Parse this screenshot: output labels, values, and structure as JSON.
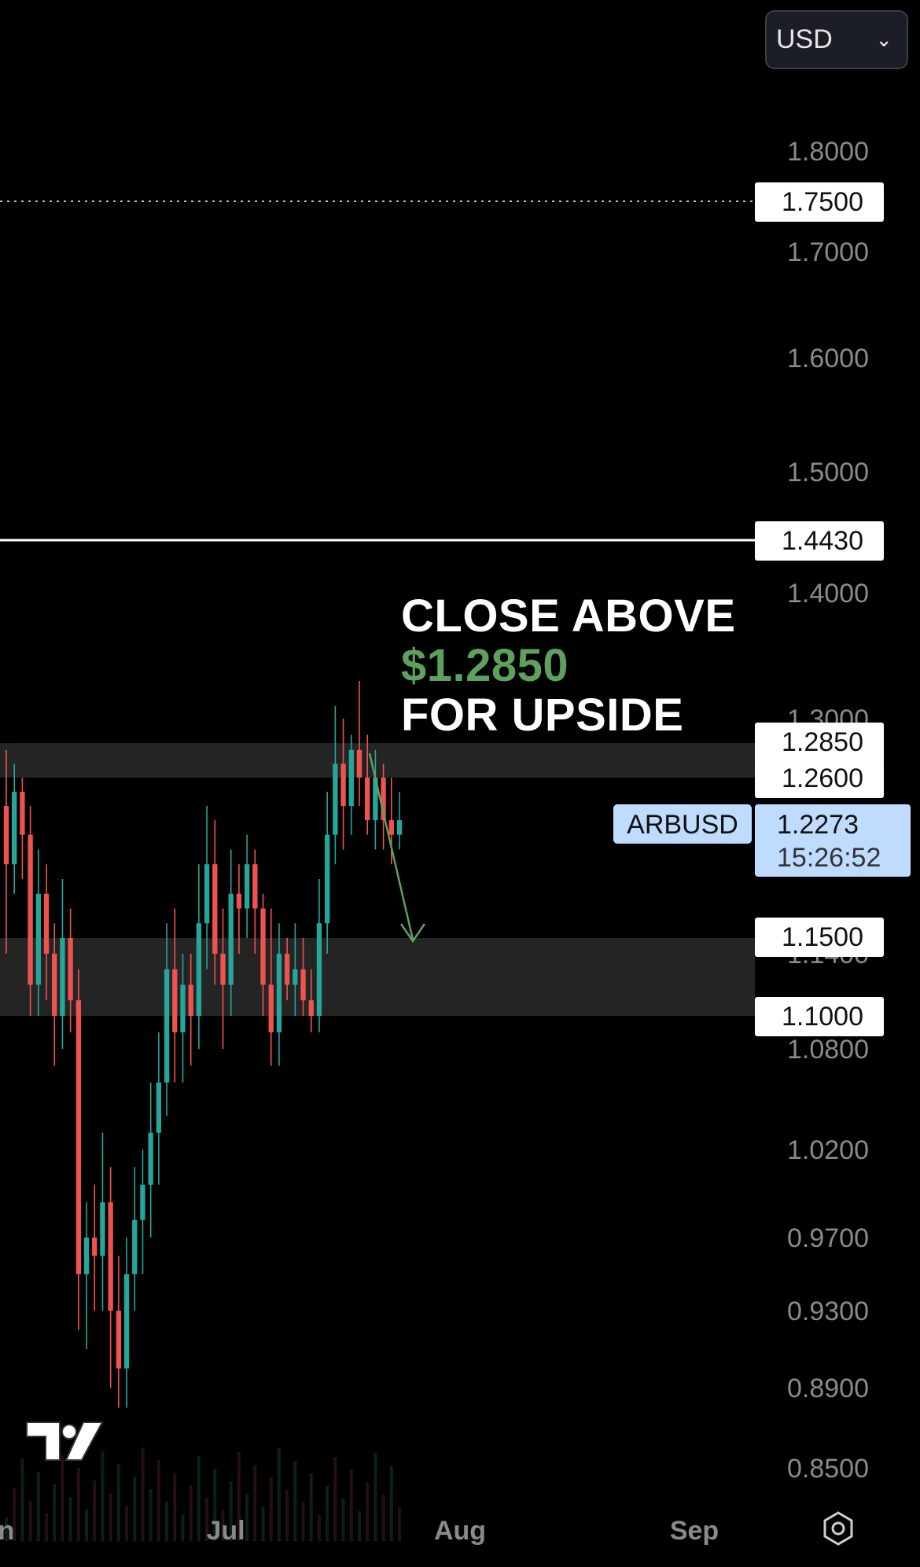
{
  "header": {
    "currency_label": "USD",
    "currency_icon": "chevron-down-icon"
  },
  "chart_data": {
    "type": "candlestick",
    "symbol": "ARBUSD",
    "last_price": "1.2273",
    "countdown": "15:26:52",
    "y_ticks": [
      "1.8000",
      "1.7000",
      "1.6000",
      "1.5000",
      "1.4000",
      "1.3000",
      "1.1400",
      "1.0800",
      "1.0200",
      "0.9700",
      "0.9300",
      "0.8900",
      "0.8500"
    ],
    "x_ticks": [
      "Jun",
      "Jul",
      "Aug",
      "Sep"
    ],
    "levels": [
      {
        "label": "1.7500",
        "style": "dotted"
      },
      {
        "label": "1.4430",
        "style": "solid"
      },
      {
        "label": "1.2850",
        "style": "zone-top"
      },
      {
        "label": "1.2600",
        "style": "zone-bottom"
      },
      {
        "label": "1.1500",
        "style": "zone-top"
      },
      {
        "label": "1.1000",
        "style": "zone-bottom"
      }
    ],
    "zones": [
      {
        "from": 1.26,
        "to": 1.285
      },
      {
        "from": 1.1,
        "to": 1.15
      }
    ],
    "annotation": {
      "line1": "CLOSE ABOVE",
      "line2": "$1.2850",
      "line3": "FOR UPSIDE"
    },
    "colors": {
      "up": "#26a69a",
      "down": "#ef5350",
      "annotation_green": "#5ea05e",
      "price_tag": "#bfdcff"
    },
    "candles": [
      [
        1.24,
        1.28,
        1.14,
        1.2
      ],
      [
        1.2,
        1.27,
        1.18,
        1.25
      ],
      [
        1.25,
        1.26,
        1.19,
        1.22
      ],
      [
        1.22,
        1.24,
        1.1,
        1.12
      ],
      [
        1.12,
        1.21,
        1.1,
        1.18
      ],
      [
        1.18,
        1.2,
        1.11,
        1.14
      ],
      [
        1.14,
        1.16,
        1.07,
        1.1
      ],
      [
        1.1,
        1.19,
        1.08,
        1.15
      ],
      [
        1.15,
        1.17,
        1.09,
        1.11
      ],
      [
        1.11,
        1.13,
        0.92,
        0.95
      ],
      [
        0.95,
        0.99,
        0.91,
        0.97
      ],
      [
        0.97,
        1.0,
        0.93,
        0.96
      ],
      [
        0.96,
        1.03,
        0.93,
        0.99
      ],
      [
        0.99,
        1.01,
        0.89,
        0.93
      ],
      [
        0.93,
        0.96,
        0.88,
        0.9
      ],
      [
        0.9,
        0.97,
        0.88,
        0.95
      ],
      [
        0.95,
        1.01,
        0.93,
        0.98
      ],
      [
        0.98,
        1.02,
        0.95,
        1.0
      ],
      [
        1.0,
        1.06,
        0.97,
        1.03
      ],
      [
        1.03,
        1.09,
        1.0,
        1.06
      ],
      [
        1.06,
        1.16,
        1.04,
        1.13
      ],
      [
        1.13,
        1.17,
        1.06,
        1.09
      ],
      [
        1.09,
        1.14,
        1.06,
        1.12
      ],
      [
        1.12,
        1.14,
        1.07,
        1.1
      ],
      [
        1.1,
        1.2,
        1.08,
        1.16
      ],
      [
        1.16,
        1.24,
        1.13,
        1.2
      ],
      [
        1.2,
        1.23,
        1.12,
        1.14
      ],
      [
        1.14,
        1.17,
        1.08,
        1.12
      ],
      [
        1.12,
        1.21,
        1.1,
        1.18
      ],
      [
        1.18,
        1.2,
        1.14,
        1.17
      ],
      [
        1.17,
        1.22,
        1.15,
        1.2
      ],
      [
        1.2,
        1.21,
        1.14,
        1.17
      ],
      [
        1.17,
        1.18,
        1.1,
        1.12
      ],
      [
        1.12,
        1.17,
        1.07,
        1.09
      ],
      [
        1.09,
        1.16,
        1.07,
        1.14
      ],
      [
        1.14,
        1.15,
        1.11,
        1.12
      ],
      [
        1.12,
        1.16,
        1.1,
        1.13
      ],
      [
        1.13,
        1.15,
        1.1,
        1.11
      ],
      [
        1.11,
        1.13,
        1.09,
        1.1
      ],
      [
        1.1,
        1.19,
        1.09,
        1.16
      ],
      [
        1.16,
        1.25,
        1.14,
        1.22
      ],
      [
        1.22,
        1.31,
        1.2,
        1.27
      ],
      [
        1.27,
        1.3,
        1.21,
        1.24
      ],
      [
        1.24,
        1.29,
        1.22,
        1.28
      ],
      [
        1.28,
        1.33,
        1.24,
        1.26
      ],
      [
        1.26,
        1.29,
        1.22,
        1.23
      ],
      [
        1.23,
        1.28,
        1.21,
        1.26
      ],
      [
        1.26,
        1.27,
        1.21,
        1.23
      ],
      [
        1.23,
        1.26,
        1.2,
        1.22
      ],
      [
        1.22,
        1.25,
        1.21,
        1.23
      ]
    ]
  }
}
